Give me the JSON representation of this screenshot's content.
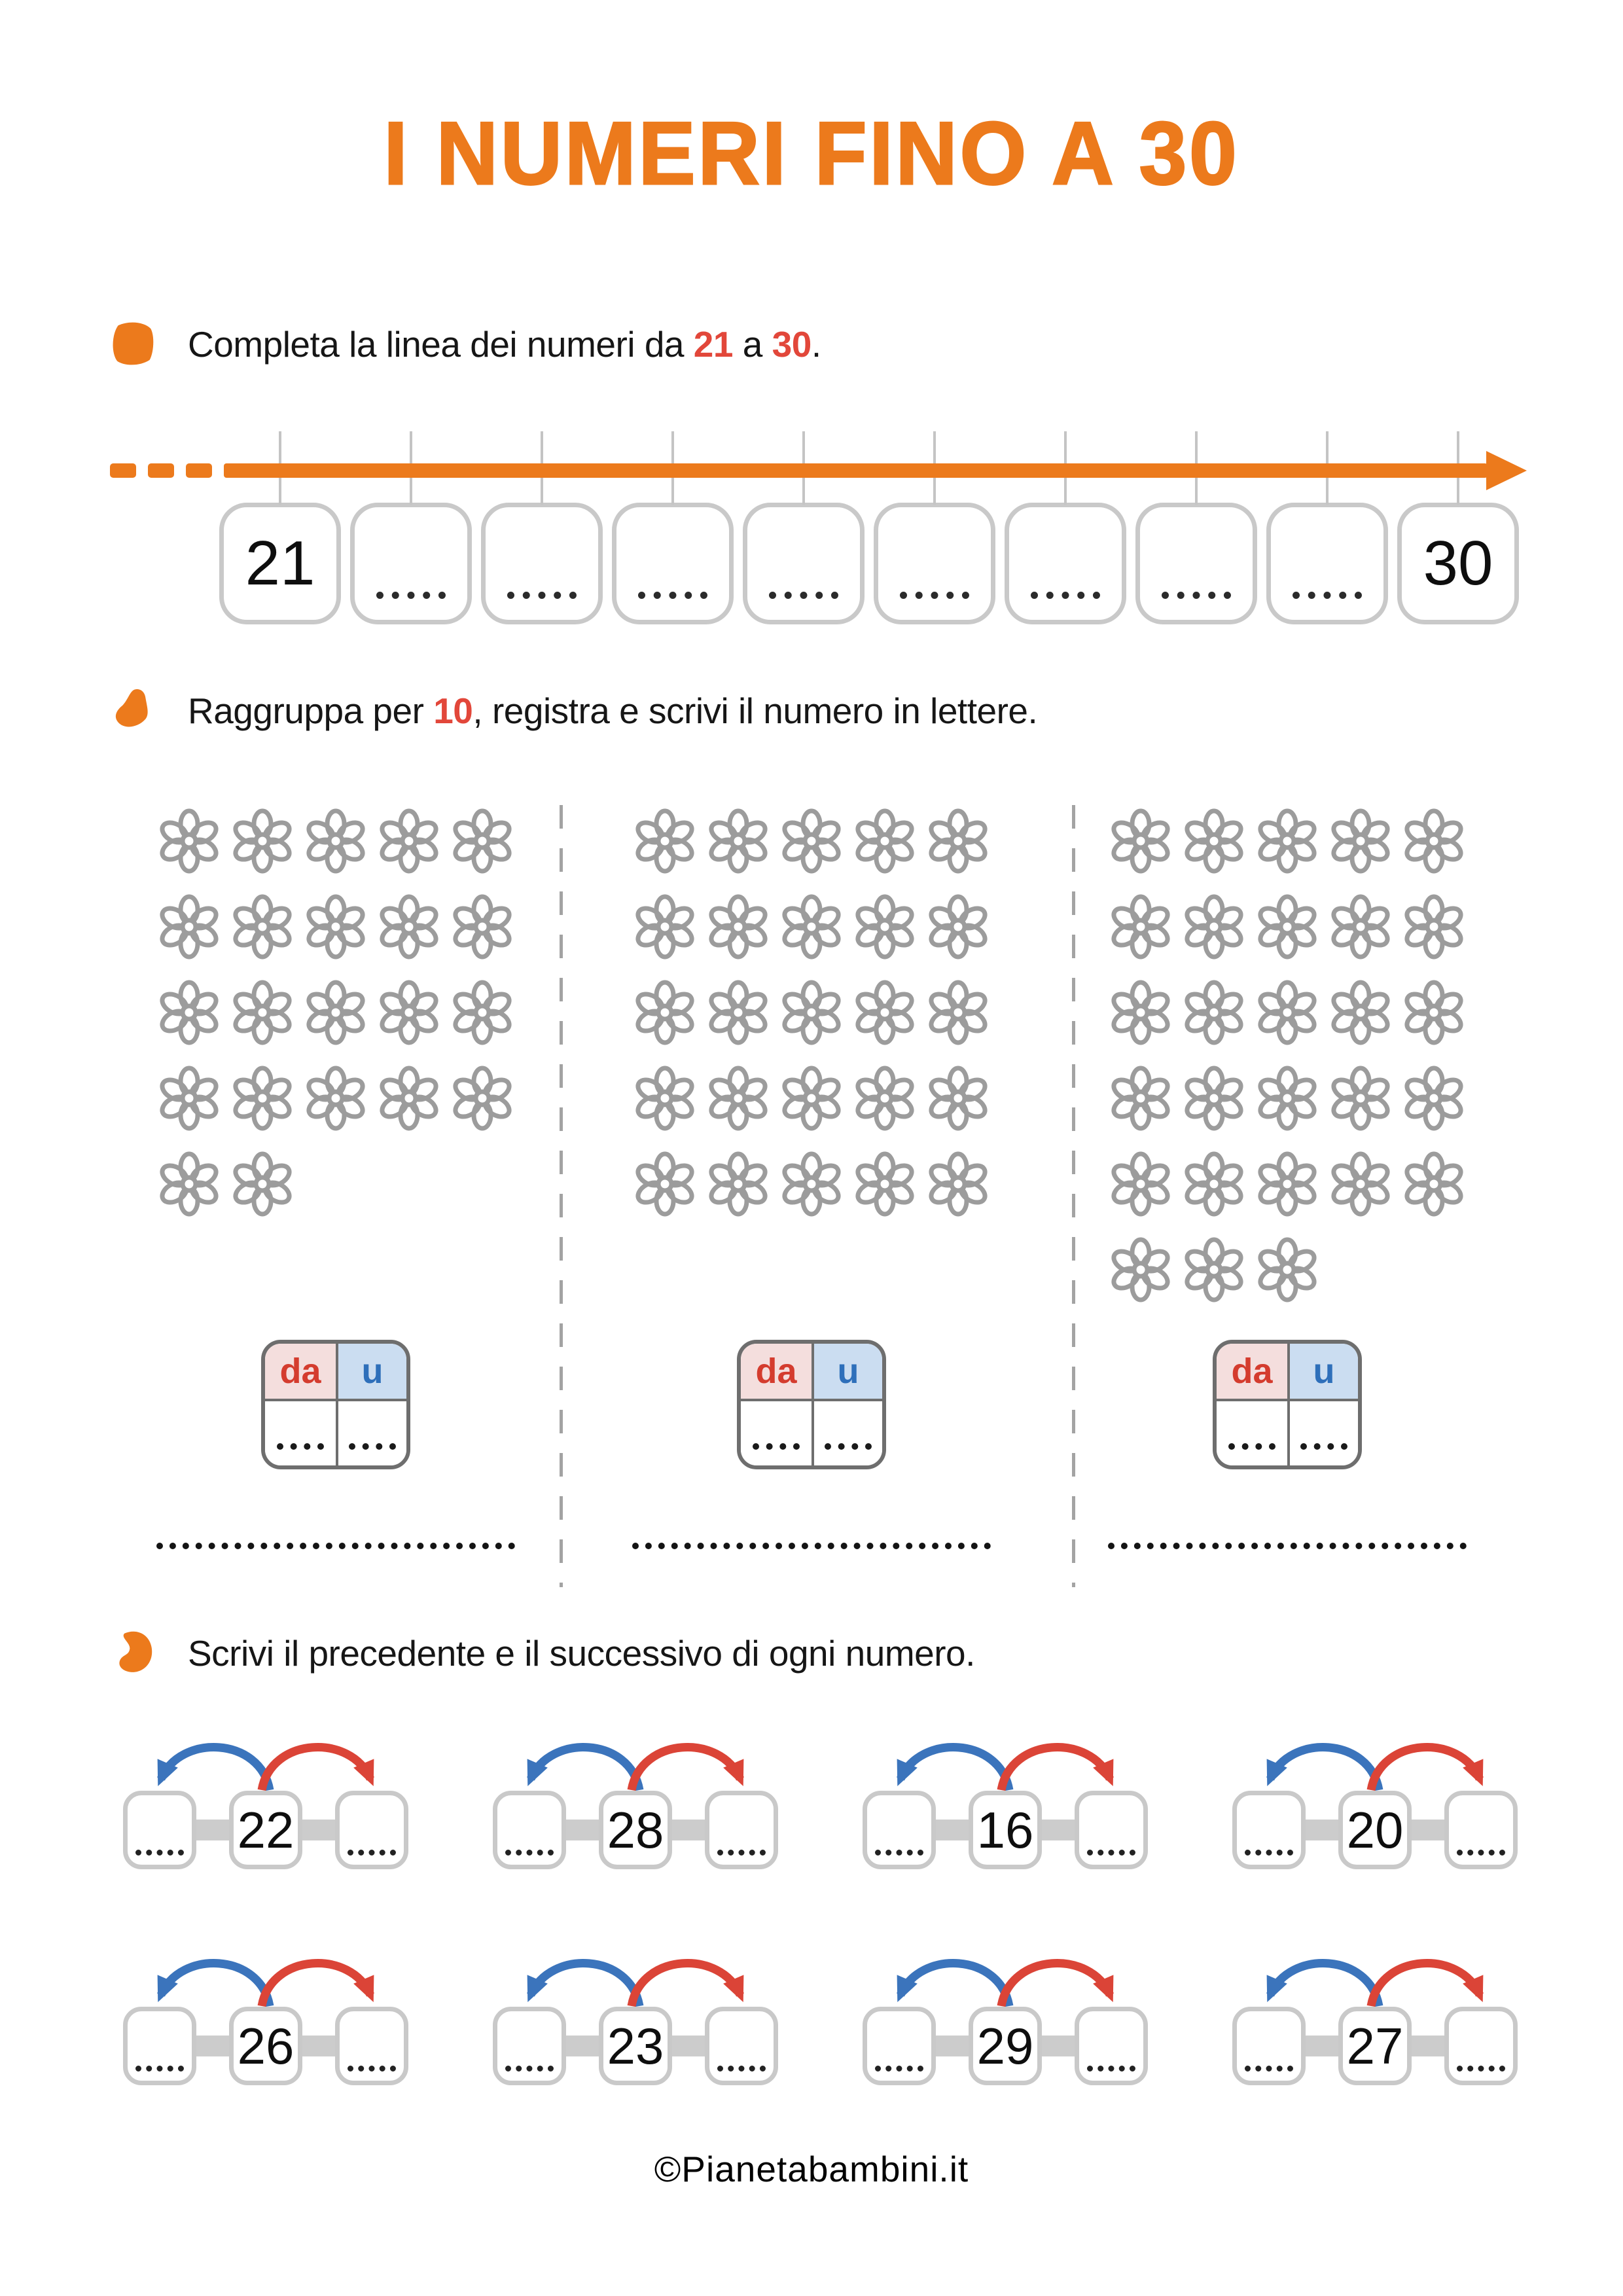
{
  "title": "I NUMERI FINO A 30",
  "footer": "©Pianetabambini.it",
  "colors": {
    "orange": "#EC7A1C",
    "accent_red": "#E2473A",
    "arrow_blue": "#3B74BC",
    "arrow_red": "#DB4437",
    "flower_gray": "#9C9C9C",
    "box_border_gray": "#C9C9C9",
    "table_border_gray": "#6E6E6E",
    "tens_bg": "#F4DEDD",
    "units_bg": "#CBDDF1",
    "tens_text": "#D43C2E",
    "units_text": "#2E6FBA"
  },
  "icons": {
    "bullet1": "rounded-square-blob",
    "bullet2": "triangle-blob",
    "bullet3": "bean-blob",
    "flower": "six-petal-flower-outline"
  },
  "exercise1": {
    "text_before": "Completa la linea dei numeri da ",
    "num_from": "21",
    "text_mid": " a ",
    "num_to": "30",
    "text_after": ".",
    "cells": [
      "21",
      "",
      "",
      "",
      "",
      "",
      "",
      "",
      "",
      "30"
    ]
  },
  "exercise2": {
    "text_before": "Raggruppa per ",
    "num": "10",
    "text_after": ", registra e scrivi il numero in lettere.",
    "table": {
      "tens_label": "da",
      "units_label": "u"
    },
    "groups": [
      {
        "rows": [
          5,
          5,
          5,
          5,
          2
        ],
        "total_flowers": 22
      },
      {
        "rows": [
          5,
          5,
          5,
          5,
          5
        ],
        "total_flowers": 25
      },
      {
        "rows": [
          5,
          5,
          5,
          5,
          5,
          3
        ],
        "total_flowers": 28
      }
    ]
  },
  "exercise3": {
    "text": "Scrivi il precedente e il successivo di ogni numero.",
    "numbers": [
      "22",
      "28",
      "16",
      "20",
      "26",
      "23",
      "29",
      "27"
    ]
  }
}
